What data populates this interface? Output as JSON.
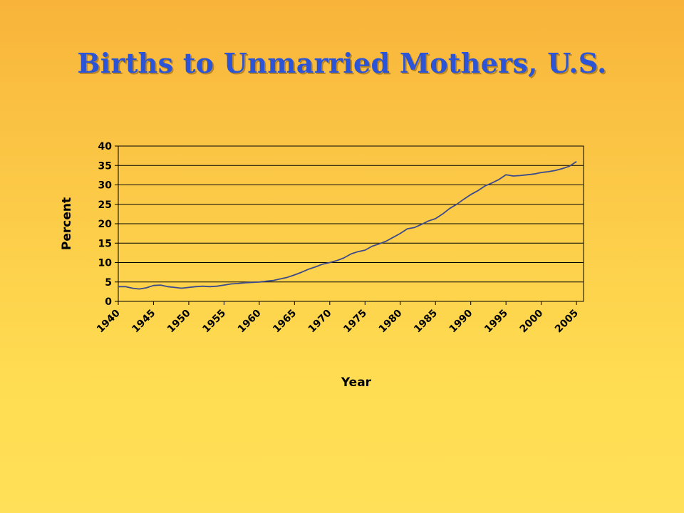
{
  "slide": {
    "title": "Births to Unmarried Mothers, U.S."
  },
  "colors": {
    "title": "#2B55D6",
    "line": "#3C4A8C",
    "grid": "#000000",
    "background_top": "#F8B43A",
    "background_bottom": "#FFE058"
  },
  "chart_data": {
    "type": "line",
    "title": "",
    "xlabel": "Year",
    "ylabel": "Percent",
    "xlim": [
      1940,
      2006
    ],
    "ylim": [
      0,
      40
    ],
    "x_ticks": [
      "1940",
      "1945",
      "1950",
      "1955",
      "1960",
      "1965",
      "1970",
      "1975",
      "1980",
      "1985",
      "1990",
      "1995",
      "2000",
      "2005"
    ],
    "y_ticks": [
      "0",
      "5",
      "10",
      "15",
      "20",
      "25",
      "30",
      "35",
      "40"
    ],
    "grid": "horizontal",
    "legend": "none",
    "series": [
      {
        "x": [
          1940,
          1941,
          1942,
          1943,
          1944,
          1945,
          1946,
          1947,
          1948,
          1949,
          1950,
          1951,
          1952,
          1953,
          1954,
          1955,
          1956,
          1957,
          1958,
          1959,
          1960,
          1961,
          1962,
          1963,
          1964,
          1965,
          1966,
          1967,
          1968,
          1969,
          1970,
          1971,
          1972,
          1973,
          1974,
          1975,
          1976,
          1977,
          1978,
          1979,
          1980,
          1981,
          1982,
          1983,
          1984,
          1985,
          1986,
          1987,
          1988,
          1989,
          1990,
          1991,
          1992,
          1993,
          1994,
          1995,
          1996,
          1997,
          1998,
          1999,
          2000,
          2001,
          2002,
          2003,
          2004,
          2005
        ],
        "y": [
          3.8,
          3.8,
          3.4,
          3.2,
          3.5,
          4.1,
          4.2,
          3.8,
          3.6,
          3.4,
          3.6,
          3.8,
          3.9,
          3.8,
          3.9,
          4.2,
          4.5,
          4.6,
          4.8,
          4.9,
          5.0,
          5.2,
          5.4,
          5.8,
          6.2,
          6.8,
          7.5,
          8.3,
          8.9,
          9.6,
          10.0,
          10.5,
          11.2,
          12.2,
          12.8,
          13.2,
          14.2,
          14.8,
          15.5,
          16.5,
          17.5,
          18.7,
          19.0,
          19.8,
          20.7,
          21.3,
          22.5,
          23.9,
          25.0,
          26.3,
          27.5,
          28.5,
          29.7,
          30.5,
          31.4,
          32.6,
          32.3,
          32.4,
          32.6,
          32.8,
          33.2,
          33.4,
          33.7,
          34.2,
          34.8,
          36.0
        ]
      }
    ]
  }
}
